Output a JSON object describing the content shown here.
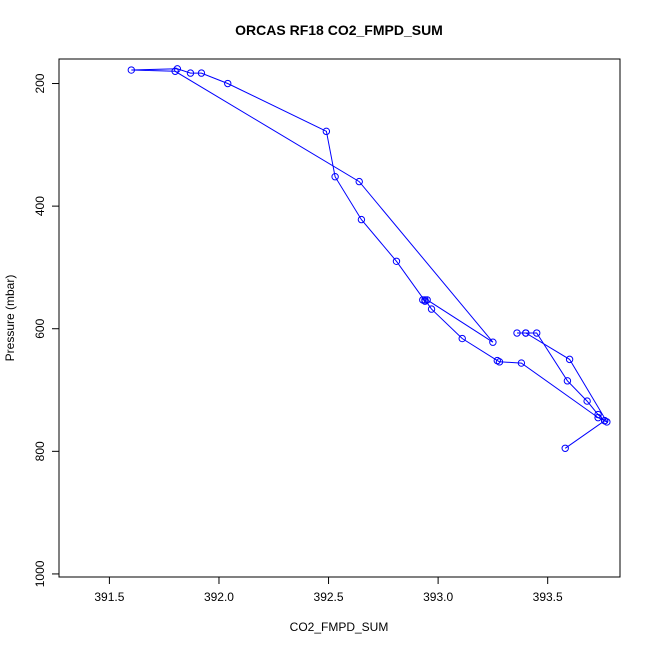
{
  "chart_data": {
    "type": "line",
    "title": "ORCAS RF18 CO2_FMPD_SUM",
    "xlabel": "CO2_FMPD_SUM",
    "ylabel": "Pressure (mbar)",
    "xlim": [
      391.27,
      393.83
    ],
    "ylim": [
      1005,
      160
    ],
    "y_reversed": true,
    "xticks": [
      391.5,
      392.0,
      392.5,
      393.0,
      393.5
    ],
    "xtick_labels": [
      "391.5",
      "392.0",
      "392.5",
      "393.0",
      "393.5"
    ],
    "yticks": [
      200,
      400,
      600,
      800,
      1000
    ],
    "ytick_labels": [
      "200",
      "400",
      "600",
      "800",
      "1000"
    ],
    "grid": false,
    "legend": "none",
    "markers": "open-circle",
    "color": "#0000ff",
    "series": [
      {
        "x": [
          393.58,
          393.76,
          393.76,
          393.73,
          393.68,
          393.59,
          393.45,
          393.4,
          393.36,
          393.4,
          393.6,
          393.77,
          393.73,
          393.38,
          393.28,
          393.27,
          393.11,
          392.97,
          392.94,
          392.93,
          392.95,
          393.25,
          392.64,
          391.8,
          391.6,
          391.81,
          391.87,
          391.92,
          392.04,
          392.49,
          392.53,
          392.65,
          392.81,
          392.94
        ],
        "y": [
          795,
          750,
          750,
          740,
          718,
          685,
          607,
          607,
          607,
          607,
          650,
          752,
          745,
          656,
          654,
          652,
          616,
          568,
          553,
          553,
          553,
          622,
          360,
          180,
          178,
          176,
          183,
          183,
          200,
          278,
          352,
          422,
          490,
          555
        ]
      }
    ]
  }
}
